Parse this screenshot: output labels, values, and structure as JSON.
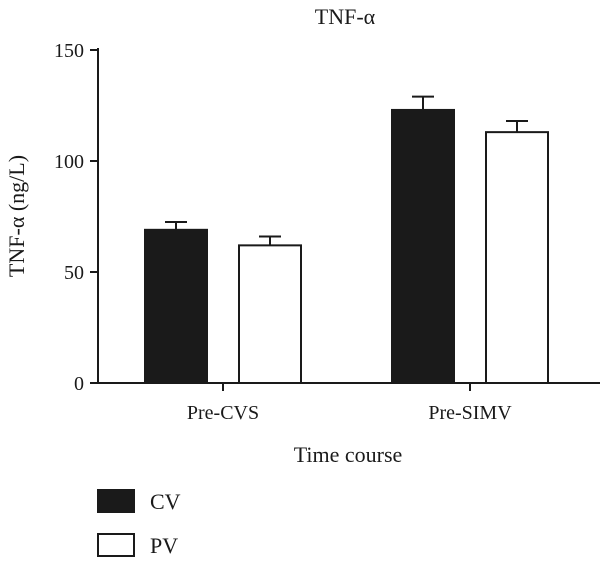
{
  "chart_data": {
    "type": "bar",
    "title": "TNF-α",
    "xlabel": "Time course",
    "ylabel": "TNF-α (ng/L)",
    "categories": [
      "Pre-CVS",
      "Pre-SIMV"
    ],
    "ylim": [
      0,
      150
    ],
    "yticks": [
      0,
      50,
      100,
      150
    ],
    "grid": false,
    "legend_position": "bottom-left",
    "series": [
      {
        "name": "CV",
        "values": [
          69,
          123
        ],
        "errors": [
          3.5,
          6
        ],
        "fill": "#1a1a1a"
      },
      {
        "name": "PV",
        "values": [
          62,
          113
        ],
        "errors": [
          4,
          5
        ],
        "fill": "#ffffff"
      }
    ]
  }
}
